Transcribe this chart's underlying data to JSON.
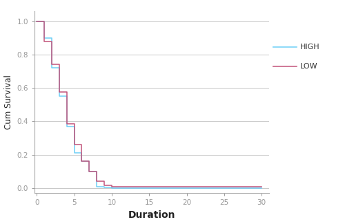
{
  "title": "",
  "xlabel": "Duration",
  "ylabel": "Cum Survival",
  "xlim": [
    -0.3,
    31
  ],
  "ylim": [
    -0.03,
    1.06
  ],
  "xticks": [
    0,
    5,
    10,
    15,
    20,
    25,
    30
  ],
  "yticks": [
    0.0,
    0.2,
    0.4,
    0.6,
    0.8,
    1.0
  ],
  "high_color": "#6dcff6",
  "low_color": "#c2547a",
  "background_color": "#ffffff",
  "grid_color": "#c8c8c8",
  "high_times": [
    0,
    1,
    2,
    3,
    4,
    5,
    6,
    7,
    8,
    9,
    10
  ],
  "high_surv": [
    1.0,
    0.9,
    0.72,
    0.55,
    0.37,
    0.21,
    0.16,
    0.1,
    0.01,
    0.005,
    0.0
  ],
  "low_times": [
    0,
    1,
    2,
    3,
    4,
    5,
    6,
    7,
    8,
    9,
    10,
    30
  ],
  "low_surv": [
    1.0,
    0.88,
    0.74,
    0.575,
    0.385,
    0.26,
    0.16,
    0.1,
    0.04,
    0.015,
    0.01,
    0.01
  ],
  "legend_labels": [
    "HIGH",
    "LOW"
  ],
  "linewidth": 1.1,
  "tick_labelsize": 7.5,
  "tick_color": "#999999",
  "spine_color": "#aaaaaa",
  "xlabel_fontsize": 10,
  "ylabel_fontsize": 8.5
}
